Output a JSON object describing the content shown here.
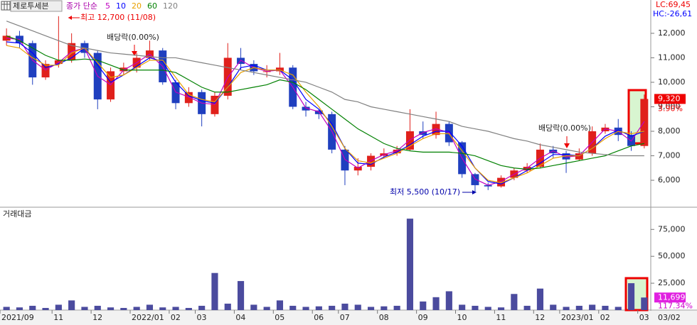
{
  "chart_data": [
    {
      "type": "candlestick",
      "title": "제로투세븐",
      "legend_label": "종가 단순",
      "up_color": "#e0201b",
      "down_color": "#1f3fbf",
      "open": [
        11700,
        11900,
        11600,
        10200,
        10750,
        10900,
        11600,
        11200,
        9300,
        10450,
        10600,
        11000,
        11300,
        10000,
        9150,
        9600,
        8700,
        9450,
        11000,
        10750,
        10450,
        10450,
        10600,
        9000,
        8850,
        8700,
        7250,
        6400,
        6550,
        7000,
        7100,
        7250,
        8000,
        7850,
        8300,
        7550,
        6250,
        5800,
        5750,
        6100,
        6400,
        6550,
        7250,
        7100,
        6850,
        7100,
        8000,
        8150,
        7850,
        7400
      ],
      "high": [
        12200,
        12100,
        11700,
        10900,
        12700,
        12000,
        11700,
        11300,
        10600,
        10800,
        11200,
        11700,
        11400,
        10100,
        9800,
        9700,
        9600,
        11600,
        11400,
        10900,
        10700,
        11200,
        10700,
        9200,
        8900,
        8800,
        7400,
        6900,
        7100,
        7300,
        7400,
        8900,
        8400,
        8800,
        8400,
        7600,
        6300,
        5900,
        6200,
        6500,
        6700,
        7500,
        7400,
        7200,
        7300,
        8200,
        8300,
        8500,
        8000,
        9500
      ],
      "low": [
        11500,
        11400,
        9900,
        10100,
        10600,
        10800,
        11000,
        8900,
        9200,
        10300,
        10400,
        10900,
        9900,
        8900,
        9000,
        8200,
        8600,
        9300,
        10500,
        10300,
        10200,
        10300,
        8900,
        8600,
        8500,
        7100,
        5800,
        6200,
        6400,
        6900,
        7000,
        7200,
        7700,
        7700,
        7400,
        6100,
        5500,
        5600,
        5700,
        6000,
        6300,
        6500,
        6900,
        6300,
        6800,
        7000,
        7900,
        7600,
        7200,
        7300
      ],
      "close": [
        11900,
        11600,
        10200,
        10750,
        10900,
        11600,
        11200,
        9300,
        10450,
        10600,
        11000,
        11300,
        10000,
        9150,
        9600,
        8700,
        9450,
        11000,
        10750,
        10450,
        10450,
        10600,
        9000,
        8850,
        8700,
        7250,
        6400,
        6550,
        7000,
        7100,
        7250,
        8000,
        7850,
        8300,
        7550,
        6250,
        5800,
        5750,
        6100,
        6400,
        6550,
        7250,
        7100,
        6850,
        7100,
        8000,
        8150,
        7850,
        7400,
        9320
      ],
      "series": [
        {
          "name": "5",
          "color": "#c000c0",
          "values": [
            11800,
            11750,
            10900,
            10500,
            10800,
            11250,
            11400,
            10250,
            9900,
            10500,
            10800,
            11150,
            10650,
            9600,
            9400,
            9150,
            9100,
            10200,
            10900,
            10600,
            10450,
            10500,
            9800,
            8950,
            8800,
            8000,
            6850,
            6500,
            6800,
            7050,
            7200,
            7650,
            7950,
            8100,
            7950,
            6900,
            6050,
            5800,
            5950,
            6250,
            6500,
            6900,
            7200,
            6950,
            7000,
            7550,
            8100,
            8000,
            7600,
            8400
          ]
        },
        {
          "name": "10",
          "color": "#0000ff",
          "values": [
            11650,
            11600,
            11200,
            10600,
            10750,
            11000,
            11400,
            10700,
            10000,
            10300,
            10650,
            11000,
            10850,
            10000,
            9450,
            9250,
            9150,
            9800,
            10600,
            10700,
            10500,
            10500,
            10100,
            9300,
            8900,
            8300,
            7300,
            6700,
            6650,
            6950,
            7150,
            7450,
            7800,
            8000,
            8000,
            7400,
            6500,
            5950,
            5850,
            6100,
            6400,
            6700,
            7050,
            7050,
            7000,
            7300,
            7800,
            8050,
            7800,
            8000
          ]
        },
        {
          "name": "20",
          "color": "#e8a000",
          "values": [
            11500,
            11400,
            11000,
            10700,
            10700,
            11200,
            11400,
            10800,
            10200,
            10300,
            10600,
            10900,
            10900,
            10200,
            9500,
            9300,
            9200,
            9800,
            10400,
            10600,
            10500,
            10500,
            10300,
            9600,
            9000,
            8200,
            7300,
            6800,
            6700,
            6900,
            7100,
            7400,
            7700,
            7900,
            7900,
            7200,
            6500,
            6000,
            5900,
            6100,
            6300,
            6600,
            6900,
            7000,
            7000,
            7300,
            7700,
            8000,
            7900,
            8000
          ]
        },
        {
          "name": "60",
          "color": "#008000",
          "values": [
            11900,
            11700,
            11400,
            11100,
            10900,
            10900,
            10950,
            10900,
            10700,
            10500,
            10500,
            10500,
            10500,
            10400,
            10100,
            9800,
            9600,
            9600,
            9700,
            9800,
            9900,
            10100,
            10000,
            9700,
            9300,
            8900,
            8500,
            8100,
            7800,
            7500,
            7300,
            7200,
            7150,
            7150,
            7150,
            7100,
            7000,
            6800,
            6600,
            6500,
            6450,
            6500,
            6600,
            6700,
            6800,
            6900,
            7000,
            7200,
            7400,
            7500
          ]
        },
        {
          "name": "120",
          "color": "#808080",
          "values": [
            12500,
            12300,
            12100,
            11900,
            11700,
            11500,
            11400,
            11300,
            11200,
            11150,
            11100,
            11050,
            11000,
            11000,
            10900,
            10800,
            10700,
            10600,
            10500,
            10400,
            10300,
            10200,
            10100,
            10000,
            9800,
            9600,
            9300,
            9200,
            9000,
            8900,
            8800,
            8700,
            8600,
            8500,
            8400,
            8200,
            8100,
            8000,
            7850,
            7700,
            7600,
            7450,
            7350,
            7250,
            7150,
            7100,
            7050,
            7000,
            7000,
            7000
          ]
        }
      ],
      "ylim": [
        4900,
        13360
      ],
      "yticks": [
        {
          "value": 6000,
          "label": "6,000"
        },
        {
          "value": 7000,
          "label": "7,000"
        },
        {
          "value": 8000,
          "label": "8,000"
        },
        {
          "value": 9000,
          "label": "9,000"
        },
        {
          "value": 10000,
          "label": "10,000"
        },
        {
          "value": 11000,
          "label": "11,000"
        },
        {
          "value": 12000,
          "label": "12,000"
        }
      ],
      "last_price": {
        "value": 9320,
        "label": "9,320"
      },
      "last_change": "3.90%",
      "indicators": [
        "LC:69,45",
        "HC:-26,61"
      ],
      "annotations": [
        "최고 12,700 (11/08)",
        "최저 5,500 (10/17)",
        "배당락(0.00%)",
        "배당락(0.00%)"
      ]
    },
    {
      "type": "bar",
      "title": "거래대금",
      "color": "#4b4b9e",
      "categories": [
        "2021/09",
        null,
        null,
        null,
        "11",
        null,
        null,
        "12",
        null,
        null,
        "2022/01",
        null,
        null,
        "02",
        null,
        "03",
        null,
        null,
        "04",
        null,
        null,
        "05",
        null,
        null,
        "06",
        null,
        "07",
        null,
        null,
        "08",
        null,
        null,
        "09",
        null,
        null,
        "10",
        null,
        null,
        "11",
        null,
        null,
        "12",
        null,
        "2023/01",
        null,
        null,
        "02",
        null,
        null,
        "03"
      ],
      "values": [
        3000,
        2500,
        4000,
        2000,
        5000,
        9000,
        3000,
        4000,
        2500,
        2000,
        3000,
        5000,
        2500,
        3000,
        2000,
        4000,
        34500,
        6000,
        27000,
        5000,
        3000,
        9000,
        4000,
        3000,
        3500,
        4000,
        6000,
        5000,
        3000,
        3500,
        4000,
        85000,
        8000,
        12000,
        17500,
        5000,
        4000,
        3000,
        2500,
        15000,
        4000,
        20000,
        5000,
        3000,
        4000,
        5000,
        4000,
        3000,
        25000,
        11699
      ],
      "ylim": [
        0,
        93000
      ],
      "yticks": [
        {
          "value": 25000,
          "label": "25,000"
        },
        {
          "value": 50000,
          "label": "50,000"
        },
        {
          "value": 75000,
          "label": "75,000"
        }
      ],
      "last_volume": {
        "value": 11699,
        "label": "11,699"
      },
      "last_ratio": "117.34%",
      "current_date": "03/02"
    }
  ]
}
